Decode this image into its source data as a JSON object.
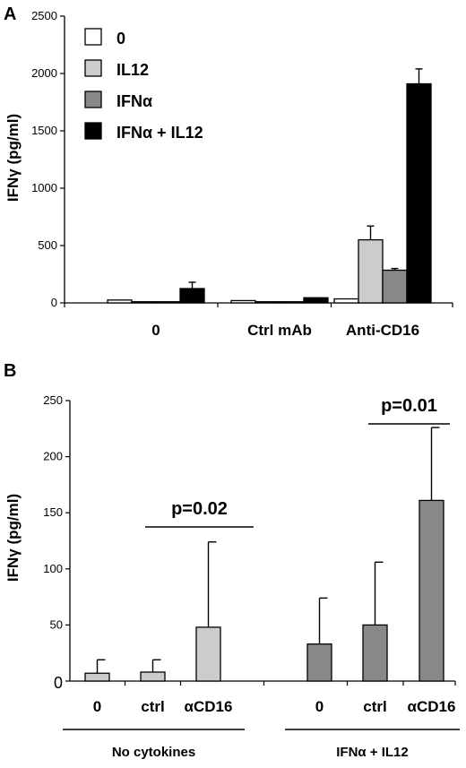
{
  "chart_data": [
    {
      "panel_label": "A",
      "type": "bar",
      "ylabel": "IFNγ (pg/ml)",
      "ylim": [
        0,
        2500
      ],
      "yticks": [
        "0",
        "500",
        "1000",
        "1500",
        "2000",
        "2500"
      ],
      "categories": [
        "0",
        "Ctrl mAb",
        "Anti-CD16"
      ],
      "legend_position": "top-left",
      "series": [
        {
          "name": "0",
          "color": "#ffffff",
          "values": [
            25,
            20,
            35
          ],
          "errors": [
            0,
            0,
            0
          ]
        },
        {
          "name": "IL12",
          "color": "#cccccc",
          "values": [
            10,
            10,
            550
          ],
          "errors": [
            0,
            0,
            120
          ]
        },
        {
          "name": "IFNα",
          "color": "#888888",
          "values": [
            10,
            10,
            285
          ],
          "errors": [
            0,
            0,
            15
          ]
        },
        {
          "name": "IFNα + IL12",
          "color": "#000000",
          "values": [
            125,
            45,
            1910
          ],
          "errors": [
            55,
            0,
            130
          ]
        }
      ]
    },
    {
      "panel_label": "B",
      "type": "bar",
      "ylabel": "IFNγ (pg/ml)",
      "ylim": [
        0,
        250
      ],
      "yticks": [
        "0",
        "50",
        "100",
        "150",
        "200",
        "250"
      ],
      "categories": [
        "0",
        "ctrl",
        "αCD16",
        "0",
        "ctrl",
        "αCD16"
      ],
      "groups": [
        {
          "label": "No cytokines",
          "color": "#cccccc"
        },
        {
          "label": "IFNα + IL12",
          "color": "#888888"
        }
      ],
      "values": [
        7,
        8,
        48,
        33,
        50,
        161
      ],
      "errors": [
        12,
        11,
        76,
        41,
        56,
        65
      ],
      "pvalues": [
        "p=0.02",
        "p=0.01"
      ]
    }
  ]
}
